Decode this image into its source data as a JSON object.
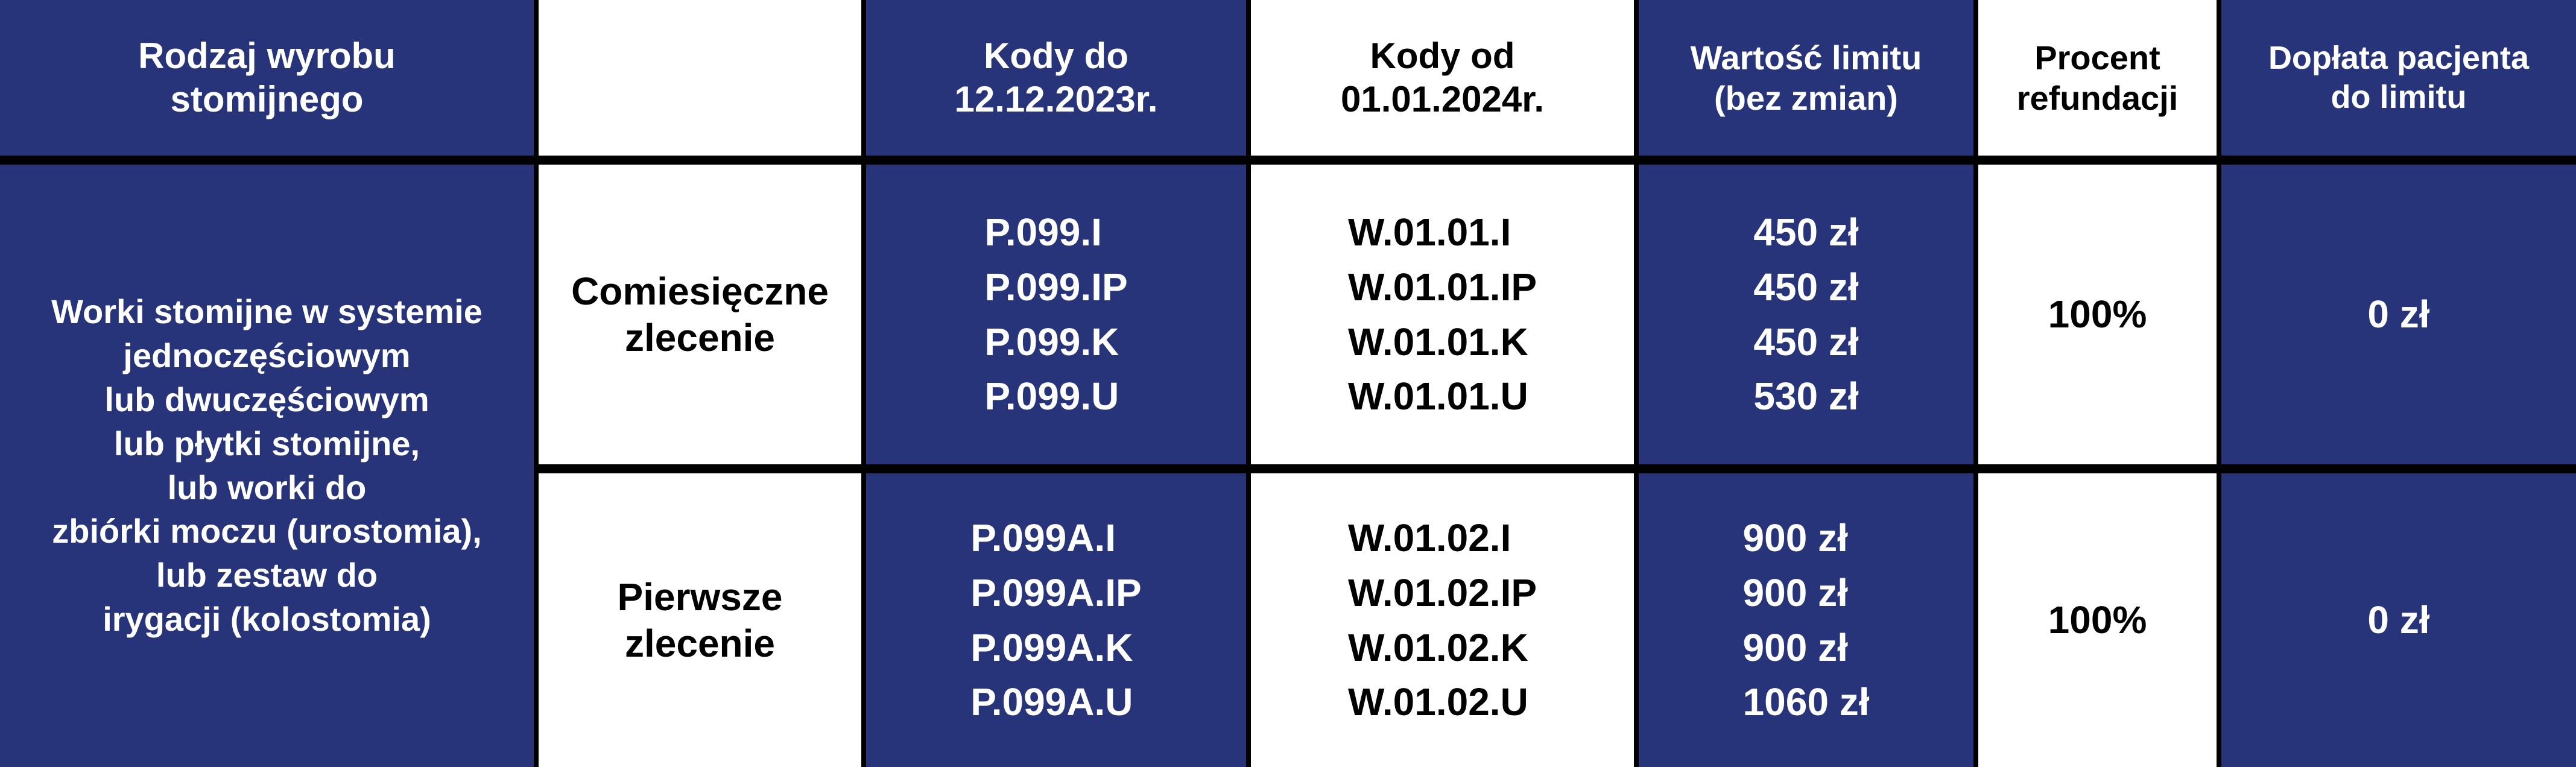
{
  "colors": {
    "navy": "#27347a",
    "white": "#ffffff",
    "border": "#000000"
  },
  "header": {
    "product_type": [
      "Rodzaj wyrobu",
      "stomijnego"
    ],
    "blank": "",
    "codes_old": [
      "Kody do",
      "12.12.2023r."
    ],
    "codes_new": [
      "Kody od",
      "01.01.2024r."
    ],
    "limit": [
      "Wartość limitu",
      "(bez zmian)"
    ],
    "refund": [
      "Procent",
      "refundacji"
    ],
    "copay": [
      "Dopłata pacjenta",
      "do limitu"
    ]
  },
  "product_description": [
    "Worki stomijne w systemie",
    "jednoczęściowym",
    "lub dwuczęściowym",
    "lub płytki stomijne,",
    "lub worki do",
    "zbiórki moczu (urostomia),",
    "lub zestaw do",
    "irygacji (kolostomia)"
  ],
  "rows": [
    {
      "order": [
        "Comiesięczne",
        "zlecenie"
      ],
      "codes_old": [
        "P.099.I",
        "P.099.IP",
        "P.099.K",
        "P.099.U"
      ],
      "codes_new": [
        "W.01.01.I",
        "W.01.01.IP",
        "W.01.01.K",
        "W.01.01.U"
      ],
      "limits": [
        "450 zł",
        "450 zł",
        "450 zł",
        "530 zł"
      ],
      "refund": "100%",
      "copay": "0 zł"
    },
    {
      "order": [
        "Pierwsze",
        "zlecenie"
      ],
      "codes_old": [
        "P.099A.I",
        "P.099A.IP",
        "P.099A.K",
        "P.099A.U"
      ],
      "codes_new": [
        "W.01.02.I",
        "W.01.02.IP",
        "W.01.02.K",
        "W.01.02.U"
      ],
      "limits": [
        "900 zł",
        "900 zł",
        "900 zł",
        "1060 zł"
      ],
      "refund": "100%",
      "copay": "0 zł"
    }
  ]
}
